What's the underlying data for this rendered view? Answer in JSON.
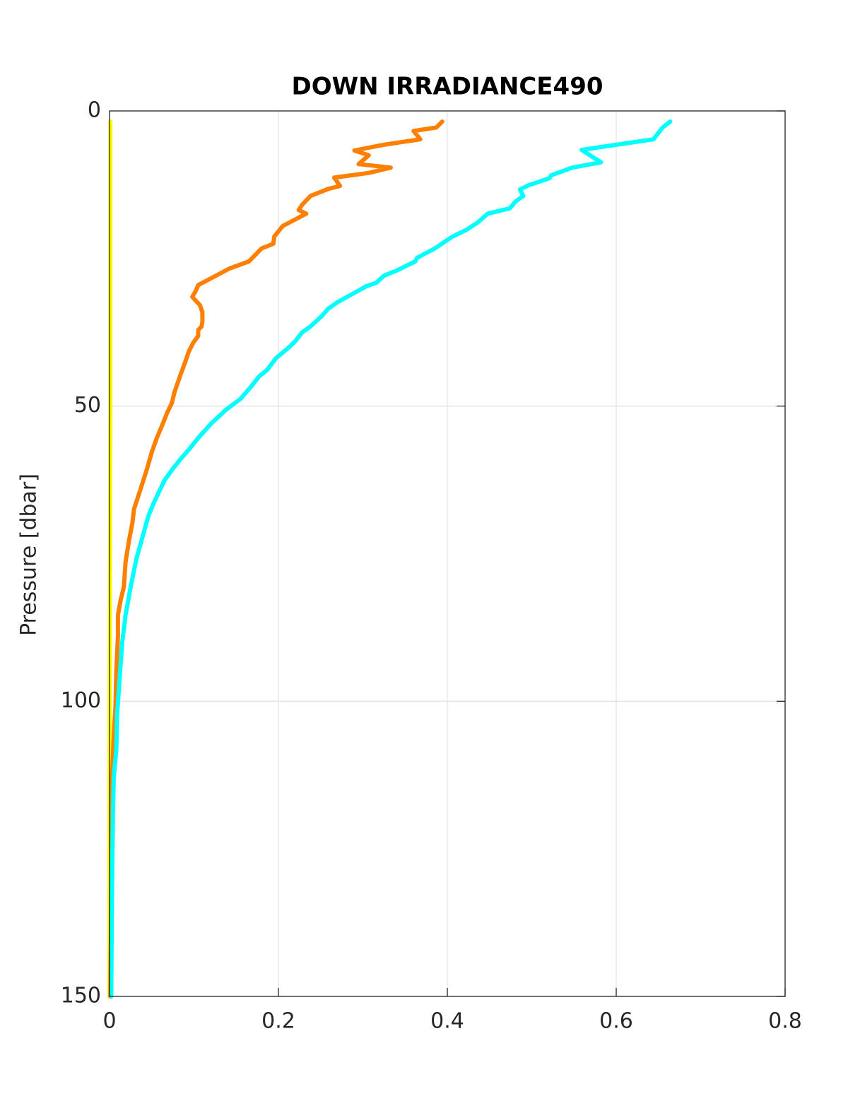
{
  "chart_data": {
    "type": "line",
    "title": "DOWN IRRADIANCE490",
    "y_label": "Pressure [dbar]",
    "xlim": [
      0,
      0.8
    ],
    "xticks": [
      0,
      0.2,
      0.4,
      0.6,
      0.8
    ],
    "ylim": [
      0,
      150
    ],
    "yticks": [
      0,
      50,
      100,
      150
    ],
    "y_reversed": true,
    "grid": true,
    "series": [
      {
        "color": "#ffff00",
        "x": [
          0.001,
          0.001,
          0,
          0
        ],
        "y": [
          1.8,
          50,
          110,
          150
        ]
      },
      {
        "color": "#ff8000",
        "x": [
          0.394,
          0.387,
          0.36,
          0.368,
          0.326,
          0.29,
          0.307,
          0.295,
          0.333,
          0.307,
          0.266,
          0.273,
          0.259,
          0.238,
          0.228,
          0.224,
          0.233,
          0.205,
          0.195,
          0.194,
          0.18,
          0.165,
          0.142,
          0.126,
          0.105,
          0.102,
          0.098,
          0.107,
          0.11,
          0.11,
          0.109,
          0.105,
          0.105,
          0.099,
          0.094,
          0.09,
          0.084,
          0.077,
          0.074,
          0.068,
          0.063,
          0.056,
          0.05,
          0.044,
          0.036,
          0.029,
          0.027,
          0.023,
          0.019,
          0.017,
          0.013,
          0.01,
          0.01,
          0.008,
          0.007,
          0.005,
          0.004,
          0.003,
          0.003,
          0.002,
          0.001
        ],
        "y": [
          1.8,
          2.8,
          3.4,
          4.8,
          5.7,
          6.7,
          7.5,
          9.0,
          9.6,
          10.5,
          11.3,
          12.7,
          13.2,
          14.4,
          15.9,
          16.8,
          17.4,
          19.5,
          21.3,
          22.5,
          23.3,
          25.5,
          26.7,
          27.9,
          29.5,
          30.5,
          31.5,
          32.9,
          34.1,
          35.7,
          36.5,
          37.1,
          38.1,
          39.3,
          40.7,
          42.4,
          44.7,
          47.6,
          49.4,
          51.2,
          53.0,
          55.4,
          57.8,
          60.8,
          64.4,
          67.4,
          69.8,
          72.8,
          76.4,
          80.6,
          83.0,
          85.4,
          89.0,
          94.9,
          100.9,
          105.7,
          109.3,
          112.9,
          118.9,
          130.9,
          150
        ]
      },
      {
        "color": "#00ffff",
        "x": [
          0.664,
          0.655,
          0.644,
          0.559,
          0.582,
          0.548,
          0.523,
          0.521,
          0.496,
          0.486,
          0.49,
          0.481,
          0.474,
          0.448,
          0.436,
          0.423,
          0.406,
          0.385,
          0.364,
          0.362,
          0.339,
          0.325,
          0.316,
          0.304,
          0.27,
          0.259,
          0.251,
          0.238,
          0.228,
          0.22,
          0.212,
          0.197,
          0.187,
          0.177,
          0.167,
          0.155,
          0.138,
          0.12,
          0.105,
          0.095,
          0.084,
          0.074,
          0.065,
          0.059,
          0.053,
          0.046,
          0.039,
          0.032,
          0.025,
          0.019,
          0.015,
          0.012,
          0.009,
          0.008,
          0.005,
          0.004,
          0.003,
          0.002
        ],
        "y": [
          1.8,
          2.8,
          4.8,
          6.6,
          8.7,
          9.6,
          10.9,
          11.4,
          12.6,
          13.3,
          14.4,
          15.3,
          16.5,
          17.4,
          18.9,
          20.1,
          21.3,
          23.3,
          24.9,
          25.5,
          27.1,
          27.9,
          29.1,
          29.7,
          32.4,
          33.5,
          34.8,
          36.5,
          37.5,
          39.0,
          40.1,
          41.9,
          43.8,
          45.0,
          46.8,
          48.8,
          50.6,
          53.0,
          55.4,
          57.2,
          59.0,
          60.8,
          62.6,
          64.4,
          66.2,
          68.6,
          72.2,
          75.8,
          80.6,
          85.4,
          90.1,
          96.1,
          102.1,
          108.1,
          112.9,
          118.9,
          130.9,
          150
        ]
      }
    ]
  }
}
